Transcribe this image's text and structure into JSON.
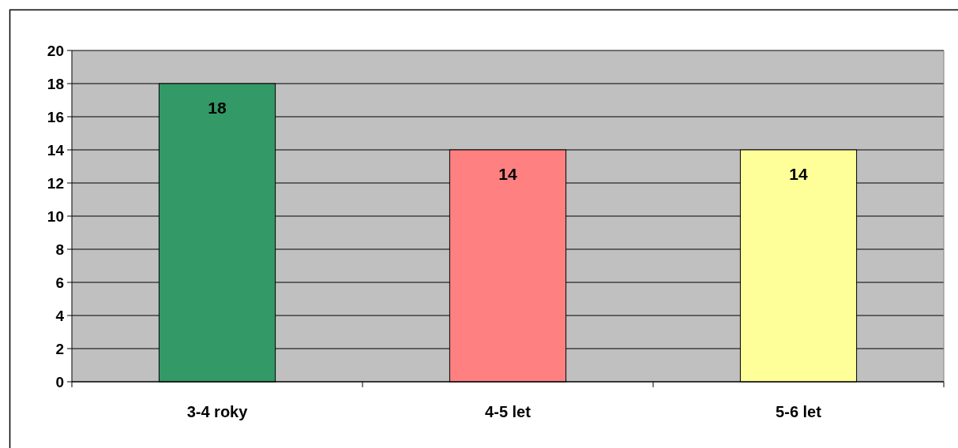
{
  "chart_data": {
    "type": "bar",
    "categories": [
      "3-4 roky",
      "4-5 let",
      "5-6 let"
    ],
    "values": [
      18,
      14,
      14
    ],
    "colors": [
      "#339966",
      "#ff8080",
      "#ffff99"
    ],
    "ylim": [
      0,
      20
    ],
    "yticks": [
      0,
      2,
      4,
      6,
      8,
      10,
      12,
      14,
      16,
      18,
      20
    ],
    "grid": "y",
    "data_labels": true
  }
}
